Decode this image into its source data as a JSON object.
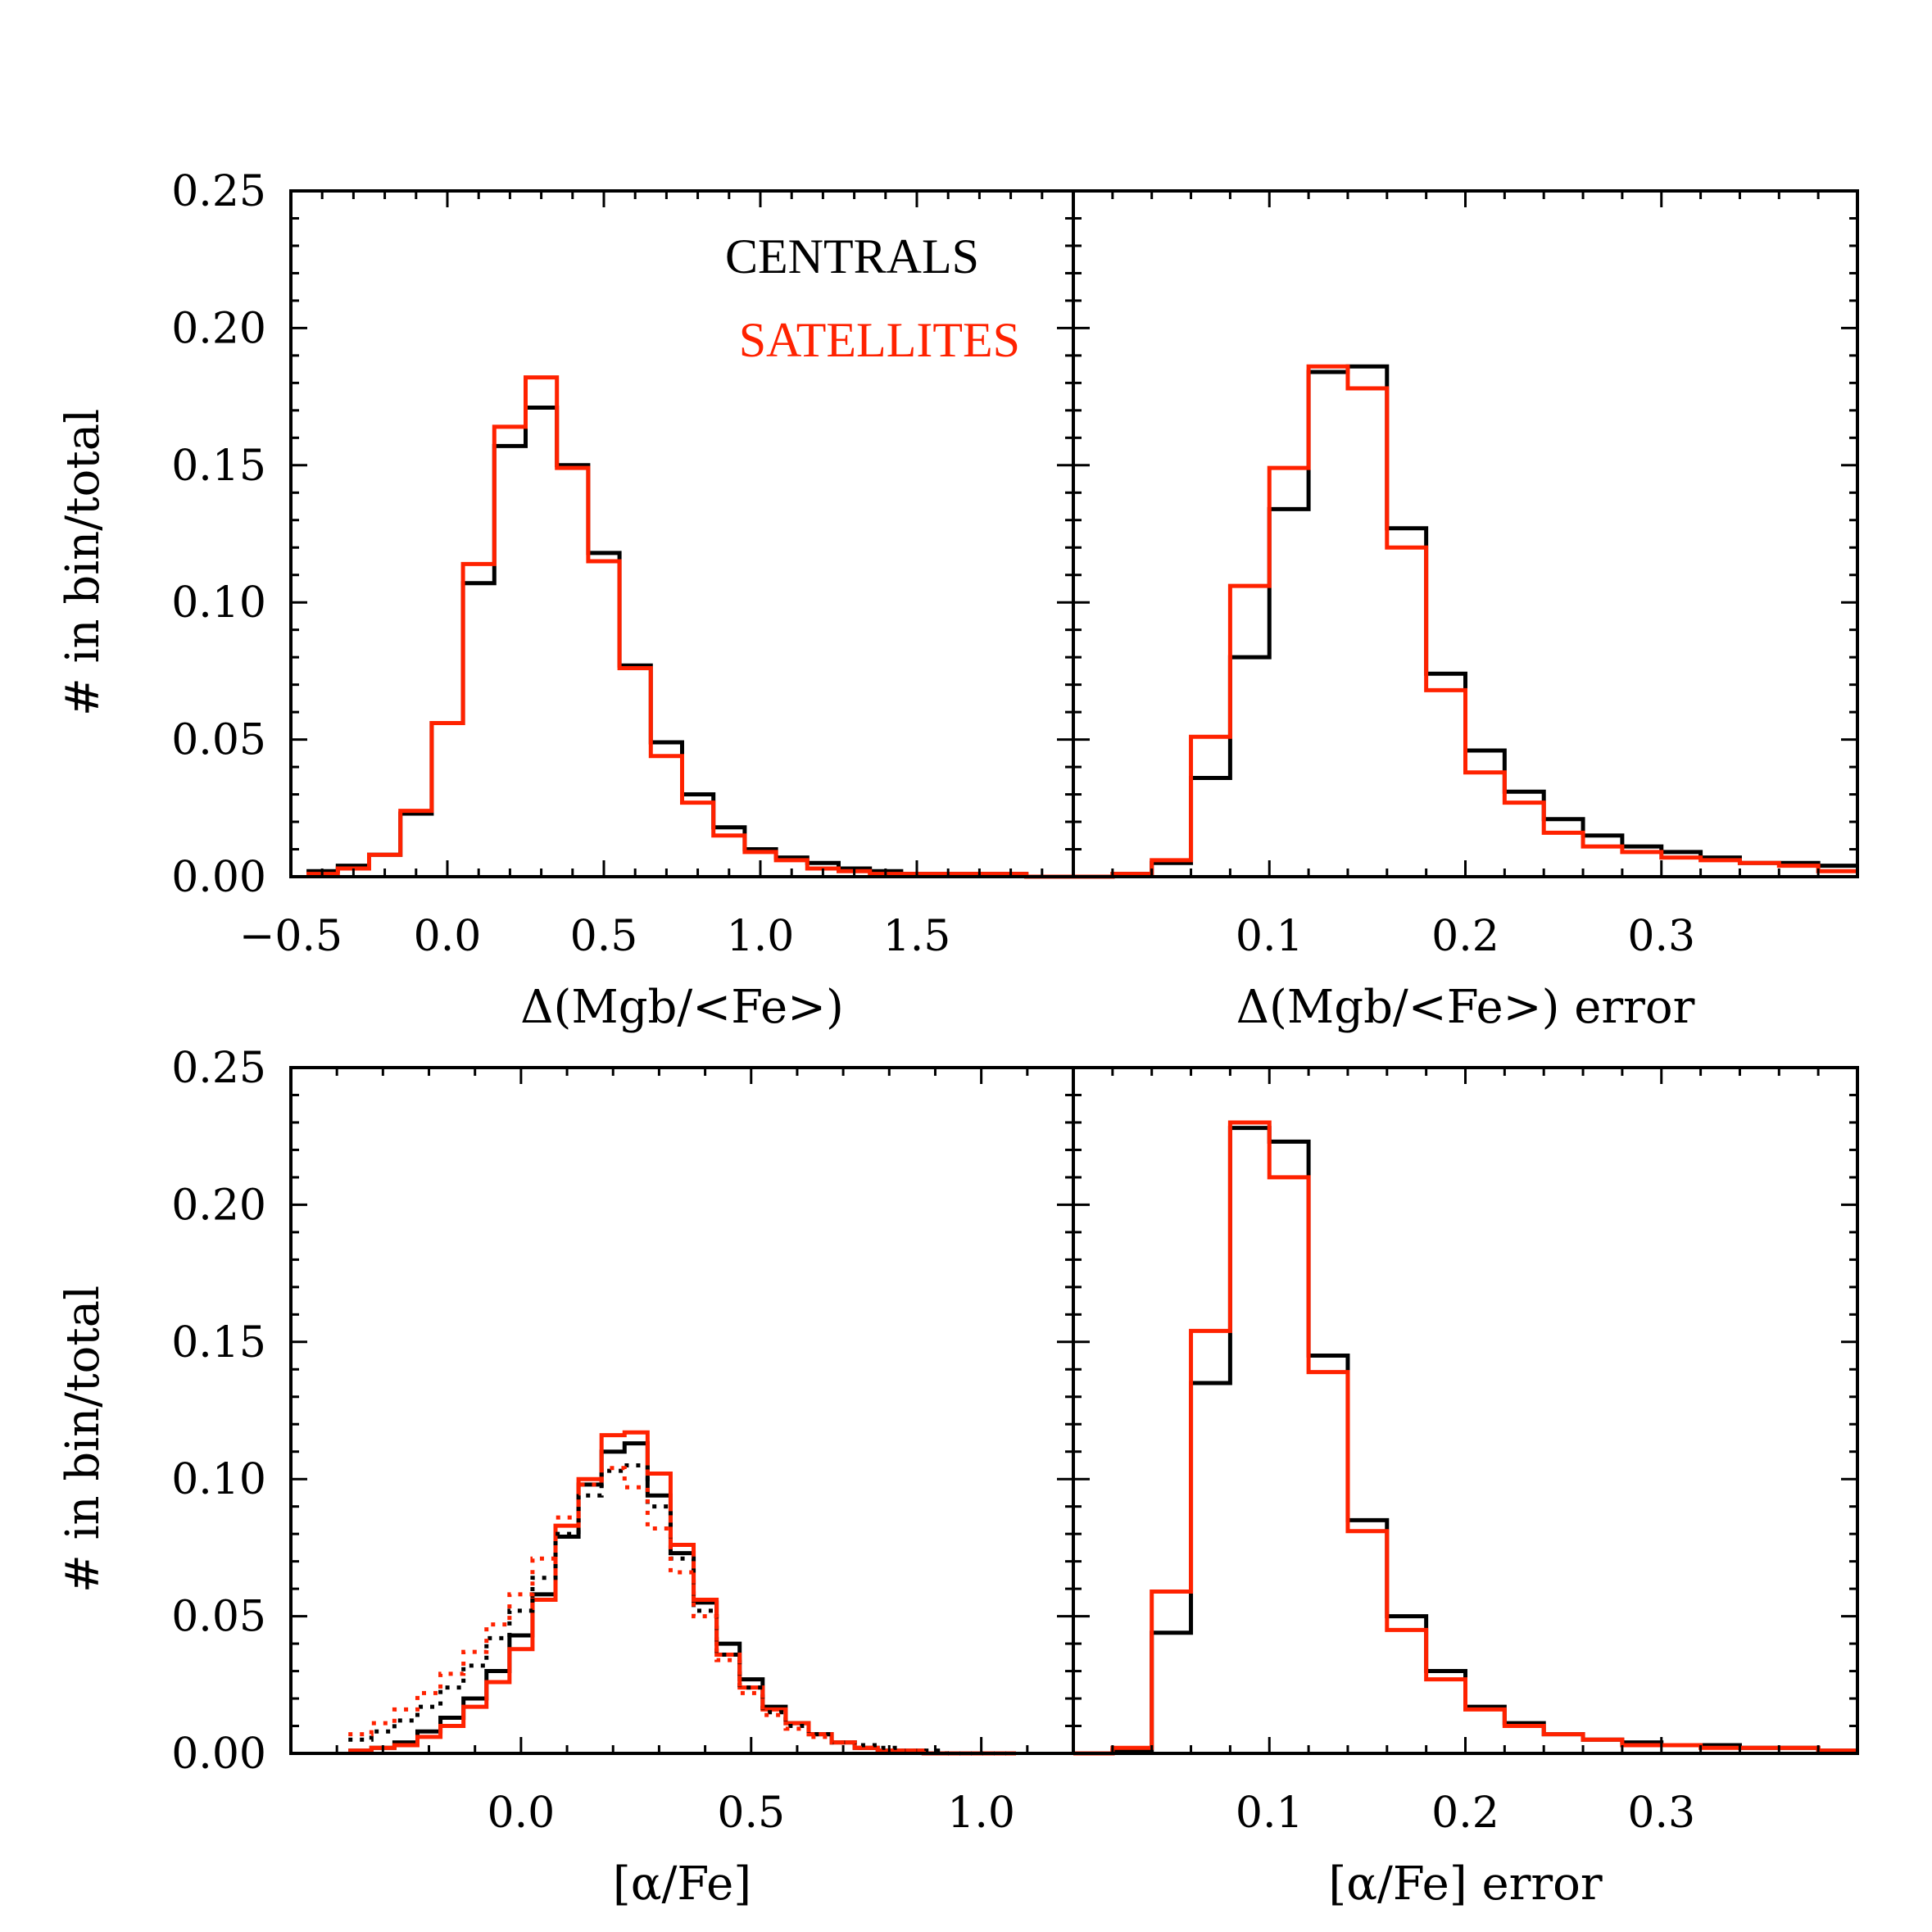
{
  "colors": {
    "centrals": "#000000",
    "satellites": "#ff2200"
  },
  "legend": {
    "centrals": "CENTRALS",
    "satellites": "SATELLITES"
  },
  "chart_data": [
    {
      "id": "p1",
      "type": "bar",
      "subtype": "histogram",
      "xlabel": "Δ(Mgb/<Fe>)",
      "ylabel": "# in bin/total",
      "xlim": [
        -0.5,
        2.0
      ],
      "ylim": [
        0,
        0.25
      ],
      "xticks": [
        -0.5,
        0.0,
        0.5,
        1.0,
        1.5
      ],
      "xtick_labels": [
        "−0.5",
        "0.0",
        "0.5",
        "1.0",
        "1.5"
      ],
      "yticks": [
        0.0,
        0.05,
        0.1,
        0.15,
        0.2,
        0.25
      ],
      "ytick_labels": [
        "0.00",
        "0.05",
        "0.10",
        "0.15",
        "0.20",
        "0.25"
      ],
      "legend_placement": "top-right",
      "bin_edges": [
        -0.45,
        -0.35,
        -0.25,
        -0.15,
        -0.05,
        0.05,
        0.15,
        0.25,
        0.35,
        0.45,
        0.55,
        0.65,
        0.75,
        0.85,
        0.95,
        1.05,
        1.15,
        1.25,
        1.35,
        1.45,
        1.55,
        1.65,
        1.75,
        1.85,
        1.95,
        2.0
      ],
      "series": [
        {
          "name": "CENTRALS",
          "color": "#000000",
          "style": "solid",
          "values": [
            0.002,
            0.004,
            0.008,
            0.023,
            0.056,
            0.107,
            0.157,
            0.171,
            0.15,
            0.118,
            0.077,
            0.049,
            0.03,
            0.018,
            0.01,
            0.007,
            0.005,
            0.003,
            0.002,
            0.001,
            0.001,
            0.001,
            0.001,
            0.0,
            0.0
          ]
        },
        {
          "name": "SATELLITES",
          "color": "#ff2200",
          "style": "solid",
          "values": [
            0.001,
            0.003,
            0.008,
            0.024,
            0.056,
            0.114,
            0.164,
            0.182,
            0.149,
            0.115,
            0.076,
            0.044,
            0.027,
            0.015,
            0.009,
            0.006,
            0.003,
            0.002,
            0.001,
            0.001,
            0.001,
            0.001,
            0.001,
            0.0,
            0.0
          ]
        }
      ]
    },
    {
      "id": "p2",
      "type": "bar",
      "subtype": "histogram",
      "xlabel": "Δ(Mgb/<Fe>) error",
      "ylabel": "",
      "xlim": [
        0.0,
        0.4
      ],
      "ylim": [
        0,
        0.25
      ],
      "xticks": [
        0.1,
        0.2,
        0.3
      ],
      "xtick_labels": [
        "0.1",
        "0.2",
        "0.3"
      ],
      "bin_edges": [
        0.0,
        0.02,
        0.04,
        0.06,
        0.08,
        0.1,
        0.12,
        0.14,
        0.16,
        0.18,
        0.2,
        0.22,
        0.24,
        0.26,
        0.28,
        0.3,
        0.32,
        0.34,
        0.36,
        0.38,
        0.4
      ],
      "series": [
        {
          "name": "CENTRALS",
          "color": "#000000",
          "style": "solid",
          "values": [
            0.0,
            0.001,
            0.005,
            0.036,
            0.08,
            0.134,
            0.184,
            0.186,
            0.127,
            0.074,
            0.046,
            0.031,
            0.021,
            0.015,
            0.011,
            0.009,
            0.007,
            0.005,
            0.005,
            0.004
          ]
        },
        {
          "name": "SATELLITES",
          "color": "#ff2200",
          "style": "solid",
          "values": [
            0.0,
            0.001,
            0.006,
            0.051,
            0.106,
            0.149,
            0.186,
            0.178,
            0.12,
            0.068,
            0.038,
            0.027,
            0.016,
            0.011,
            0.009,
            0.007,
            0.006,
            0.005,
            0.004,
            0.002
          ]
        }
      ]
    },
    {
      "id": "p3",
      "type": "bar",
      "subtype": "histogram",
      "xlabel": "[α/Fe]",
      "ylabel": "# in bin/total",
      "xlim": [
        -0.5,
        1.2
      ],
      "ylim": [
        0,
        0.25
      ],
      "xticks": [
        0.0,
        0.5,
        1.0
      ],
      "xtick_labels": [
        "0.0",
        "0.5",
        "1.0"
      ],
      "yticks": [
        0.0,
        0.05,
        0.1,
        0.15,
        0.2,
        0.25
      ],
      "ytick_labels": [
        "0.00",
        "0.05",
        "0.10",
        "0.15",
        "0.20",
        "0.25"
      ],
      "bin_edges": [
        -0.375,
        -0.325,
        -0.275,
        -0.225,
        -0.175,
        -0.125,
        -0.075,
        -0.025,
        0.025,
        0.075,
        0.125,
        0.175,
        0.225,
        0.275,
        0.325,
        0.375,
        0.425,
        0.475,
        0.525,
        0.575,
        0.625,
        0.675,
        0.725,
        0.775,
        0.825,
        0.875,
        0.925,
        0.975,
        1.025,
        1.075
      ],
      "series": [
        {
          "name": "CENTRALS",
          "color": "#000000",
          "style": "solid",
          "values": [
            0.001,
            0.002,
            0.004,
            0.008,
            0.013,
            0.02,
            0.03,
            0.043,
            0.058,
            0.079,
            0.098,
            0.11,
            0.113,
            0.094,
            0.073,
            0.055,
            0.04,
            0.027,
            0.017,
            0.011,
            0.007,
            0.004,
            0.002,
            0.001,
            0.001,
            0.0,
            0.0,
            0.0,
            0.0
          ]
        },
        {
          "name": "SATELLITES",
          "color": "#ff2200",
          "style": "solid",
          "values": [
            0.001,
            0.002,
            0.003,
            0.006,
            0.01,
            0.017,
            0.026,
            0.038,
            0.056,
            0.083,
            0.1,
            0.116,
            0.117,
            0.102,
            0.076,
            0.056,
            0.036,
            0.024,
            0.016,
            0.011,
            0.007,
            0.004,
            0.002,
            0.001,
            0.001,
            0.0,
            0.0,
            0.0,
            0.0
          ]
        },
        {
          "name": "CENTRALS",
          "color": "#000000",
          "style": "dotted",
          "values": [
            0.005,
            0.008,
            0.012,
            0.017,
            0.024,
            0.032,
            0.042,
            0.052,
            0.064,
            0.08,
            0.094,
            0.103,
            0.105,
            0.09,
            0.071,
            0.052,
            0.036,
            0.024,
            0.015,
            0.01,
            0.007,
            0.004,
            0.003,
            0.002,
            0.001,
            0.001,
            0.0,
            0.0,
            0.0
          ]
        },
        {
          "name": "SATELLITES",
          "color": "#ff2200",
          "style": "dotted",
          "values": [
            0.007,
            0.011,
            0.016,
            0.022,
            0.029,
            0.037,
            0.047,
            0.058,
            0.071,
            0.086,
            0.098,
            0.104,
            0.097,
            0.082,
            0.066,
            0.05,
            0.034,
            0.022,
            0.014,
            0.009,
            0.006,
            0.004,
            0.002,
            0.001,
            0.001,
            0.0,
            0.0,
            0.0,
            0.0
          ]
        }
      ]
    },
    {
      "id": "p4",
      "type": "bar",
      "subtype": "histogram",
      "xlabel": "[α/Fe] error",
      "ylabel": "",
      "xlim": [
        0.0,
        0.4
      ],
      "ylim": [
        0,
        0.25
      ],
      "xticks": [
        0.1,
        0.2,
        0.3
      ],
      "xtick_labels": [
        "0.1",
        "0.2",
        "0.3"
      ],
      "bin_edges": [
        0.0,
        0.02,
        0.04,
        0.06,
        0.08,
        0.1,
        0.12,
        0.14,
        0.16,
        0.18,
        0.2,
        0.22,
        0.24,
        0.26,
        0.28,
        0.3,
        0.32,
        0.34,
        0.36,
        0.38,
        0.4
      ],
      "series": [
        {
          "name": "CENTRALS",
          "color": "#000000",
          "style": "solid",
          "values": [
            0.0,
            0.001,
            0.044,
            0.135,
            0.228,
            0.223,
            0.145,
            0.085,
            0.05,
            0.03,
            0.017,
            0.011,
            0.007,
            0.005,
            0.004,
            0.003,
            0.003,
            0.002,
            0.002,
            0.001
          ]
        },
        {
          "name": "SATELLITES",
          "color": "#ff2200",
          "style": "solid",
          "values": [
            0.0,
            0.002,
            0.059,
            0.154,
            0.23,
            0.21,
            0.139,
            0.081,
            0.045,
            0.027,
            0.016,
            0.01,
            0.007,
            0.005,
            0.003,
            0.003,
            0.002,
            0.002,
            0.002,
            0.001
          ]
        }
      ]
    }
  ]
}
